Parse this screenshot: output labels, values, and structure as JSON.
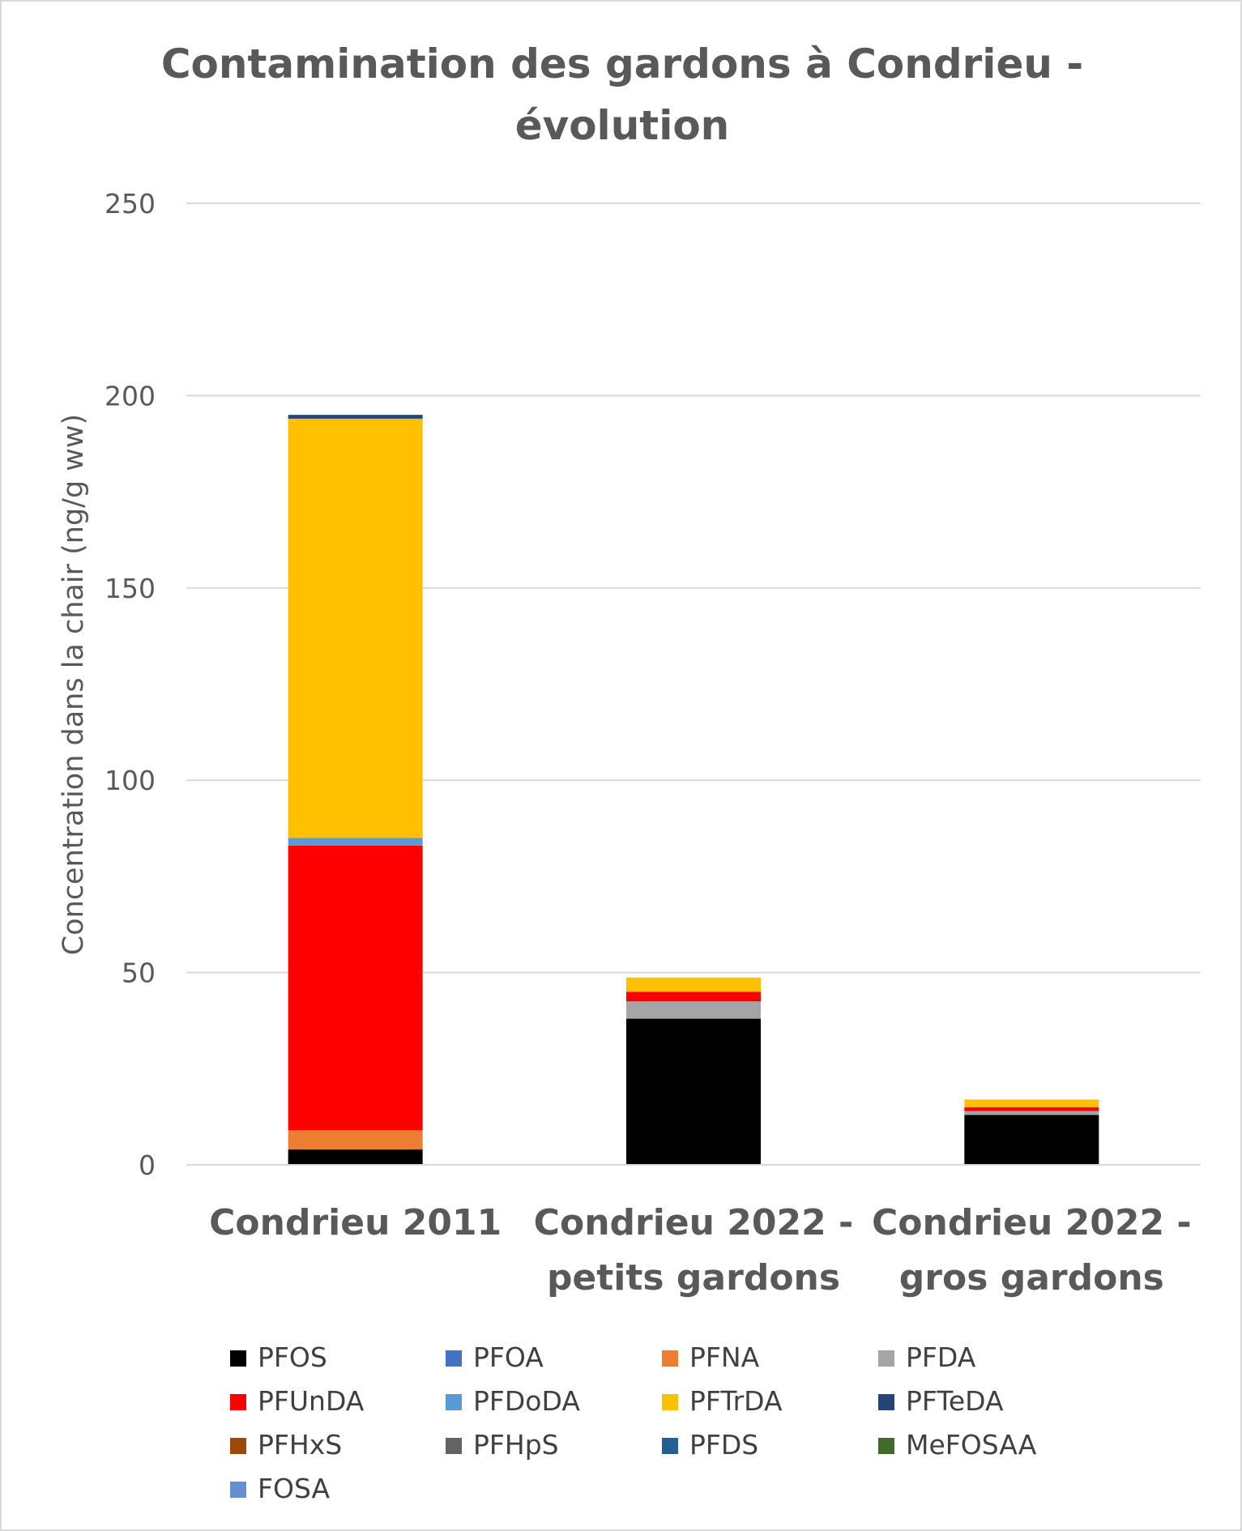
{
  "chart_data": {
    "type": "bar",
    "stacked": true,
    "title": "Contamination des gardons à Condrieu - évolution",
    "title_lines": [
      "Contamination des gardons à Condrieu -",
      "évolution"
    ],
    "ylabel": "Concentration dans la chair (ng/g ww)",
    "xlabel": "",
    "ylim": [
      0,
      250
    ],
    "yticks": [
      0,
      50,
      100,
      150,
      200,
      250
    ],
    "grid": true,
    "legend_position": "bottom",
    "categories": [
      "Condrieu 2011",
      "Condrieu 2022 - petits gardons",
      "Condrieu 2022 - gros gardons"
    ],
    "category_lines": [
      [
        "Condrieu 2011"
      ],
      [
        "Condrieu 2022 -",
        "petits gardons"
      ],
      [
        "Condrieu 2022 -",
        "gros gardons"
      ]
    ],
    "series": [
      {
        "name": "PFOS",
        "color": "#000000",
        "values": [
          4,
          38,
          13
        ]
      },
      {
        "name": "PFOA",
        "color": "#4472C4",
        "values": [
          0,
          0,
          0
        ]
      },
      {
        "name": "PFNA",
        "color": "#ED7D31",
        "values": [
          5,
          0,
          0
        ]
      },
      {
        "name": "PFDA",
        "color": "#A5A5A5",
        "values": [
          0,
          4.5,
          1
        ]
      },
      {
        "name": "PFUnDA",
        "color": "#FF0000",
        "values": [
          74,
          2.5,
          1
        ]
      },
      {
        "name": "PFDoDA",
        "color": "#5B9BD5",
        "values": [
          2,
          0,
          0
        ]
      },
      {
        "name": "PFTrDA",
        "color": "#FFC000",
        "values": [
          109,
          3.7,
          2
        ]
      },
      {
        "name": "PFTeDA",
        "color": "#264478",
        "values": [
          1,
          0,
          0
        ]
      },
      {
        "name": "PFHxS",
        "color": "#9E480E",
        "values": [
          0,
          0,
          0
        ]
      },
      {
        "name": "PFHpS",
        "color": "#636363",
        "values": [
          0,
          0,
          0
        ]
      },
      {
        "name": "PFDS",
        "color": "#255E91",
        "values": [
          0,
          0,
          0
        ]
      },
      {
        "name": "MeFOSAA",
        "color": "#43682B",
        "values": [
          0,
          0,
          0
        ]
      },
      {
        "name": "FOSA",
        "color": "#698ED0",
        "values": [
          0,
          0,
          0
        ]
      }
    ]
  }
}
